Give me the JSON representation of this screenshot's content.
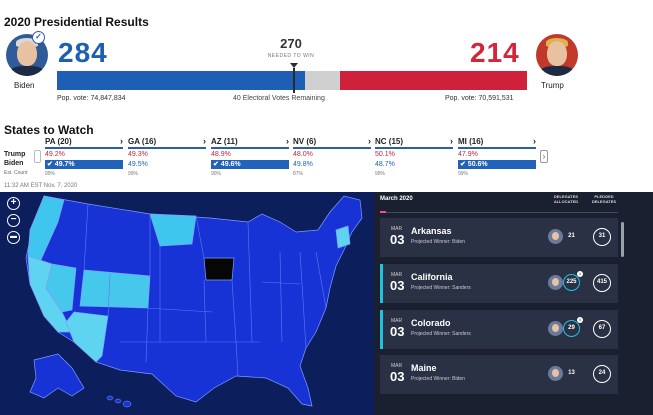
{
  "results": {
    "title": "2020 Presidential Results",
    "needed": {
      "number": "270",
      "label": "NEEDED TO WIN"
    },
    "remaining": "40 Electoral Votes Remaining",
    "biden": {
      "name": "Biden",
      "electoral_votes": "284",
      "popular_vote": "Pop. vote: 74,847,834",
      "color": "#1e5fb5"
    },
    "trump": {
      "name": "Trump",
      "electoral_votes": "214",
      "popular_vote": "Pop. vote: 70,591,531",
      "color": "#d0213a"
    },
    "bar_total": 538
  },
  "states_to_watch": {
    "title": "States to Watch",
    "row_labels": {
      "trump": "Trump",
      "biden": "Biden",
      "est": "Est. Count"
    },
    "states": [
      {
        "name": "PA (20)",
        "trump": "49.2%",
        "biden": "✔ 49.7%",
        "biden_leading": true,
        "est": "99%"
      },
      {
        "name": "GA (16)",
        "trump": "49.3%",
        "biden": "49.5%",
        "biden_leading": false,
        "est": "99%"
      },
      {
        "name": "AZ (11)",
        "trump": "48.9%",
        "biden": "✔ 49.6%",
        "biden_leading": true,
        "est": "90%"
      },
      {
        "name": "NV (6)",
        "trump": "48.0%",
        "biden": "49.8%",
        "biden_leading": false,
        "est": "87%"
      },
      {
        "name": "NC (15)",
        "trump": "50.1%",
        "biden": "48.7%",
        "biden_leading": false,
        "est": "99%"
      },
      {
        "name": "MI (16)",
        "trump": "47.9%",
        "biden": "✔ 50.6%",
        "biden_leading": true,
        "est": "99%"
      }
    ],
    "timestamp": "11:32 AM EST Nov. 7, 2020"
  },
  "map": {
    "controls": [
      "+",
      "−"
    ],
    "colors": {
      "background": "#0c1f5c",
      "base": "#1733d6",
      "light": "#46c8ec",
      "cyan": "#5fd4f0",
      "black": "#060606",
      "borders": "#7f9cff"
    }
  },
  "primaries": {
    "month": "March 2020",
    "col_delegates": "DELEGATES ALLOCATED",
    "col_pledged": "PLEDGED DELEGATES",
    "contests": [
      {
        "month": "MAR",
        "day": "03",
        "state": "Arkansas",
        "winner": "Projected Winner: Biden",
        "allocated": "21",
        "pledged": "31",
        "highlight": false,
        "ring": false,
        "badge": ""
      },
      {
        "month": "MAR",
        "day": "03",
        "state": "California",
        "winner": "Projected Winner: Sanders",
        "allocated": "225",
        "pledged": "415",
        "highlight": true,
        "ring": true,
        "badge": "i"
      },
      {
        "month": "MAR",
        "day": "03",
        "state": "Colorado",
        "winner": "Projected Winner: Sanders",
        "allocated": "29",
        "pledged": "67",
        "highlight": true,
        "ring": true,
        "badge": "i"
      },
      {
        "month": "MAR",
        "day": "03",
        "state": "Maine",
        "winner": "Projected Winner: Biden",
        "allocated": "13",
        "pledged": "24",
        "highlight": false,
        "ring": false,
        "badge": ""
      }
    ]
  }
}
